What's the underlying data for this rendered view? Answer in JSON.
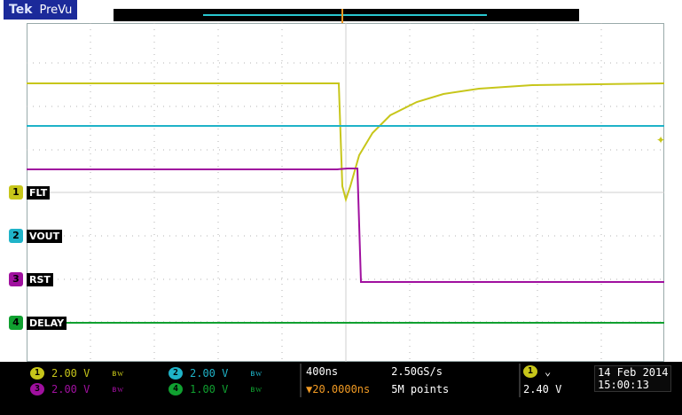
{
  "window": {
    "brand": "Tek",
    "mode": "PreVu"
  },
  "trigger": {
    "marker": "T"
  },
  "channels": [
    {
      "num": "1",
      "label": "FLT",
      "color": "#c7c61a",
      "scale": "2.00 V",
      "coupling": "ʙᴡ"
    },
    {
      "num": "2",
      "label": "VOUT",
      "color": "#1fb3c8",
      "scale": "2.00 V",
      "coupling": "ʙᴡ"
    },
    {
      "num": "3",
      "label": "RST",
      "color": "#a0109f",
      "scale": "2.00 V",
      "coupling": "ʙᴡ"
    },
    {
      "num": "4",
      "label": "DELAY",
      "color": "#10a030",
      "scale": "1.00 V",
      "coupling": "ʙᴡ"
    }
  ],
  "timebase": {
    "horizontal_scale": "400ns",
    "sample_rate": "2.50GS/s",
    "trigger_delay": "▼20.0000ns",
    "record_length": "5M points"
  },
  "trigger_status": {
    "source": "1",
    "slope_icon": "falling-edge-icon",
    "level": "2.40 V"
  },
  "datetime": {
    "date": "14 Feb 2014",
    "time": "15:00:13"
  }
}
